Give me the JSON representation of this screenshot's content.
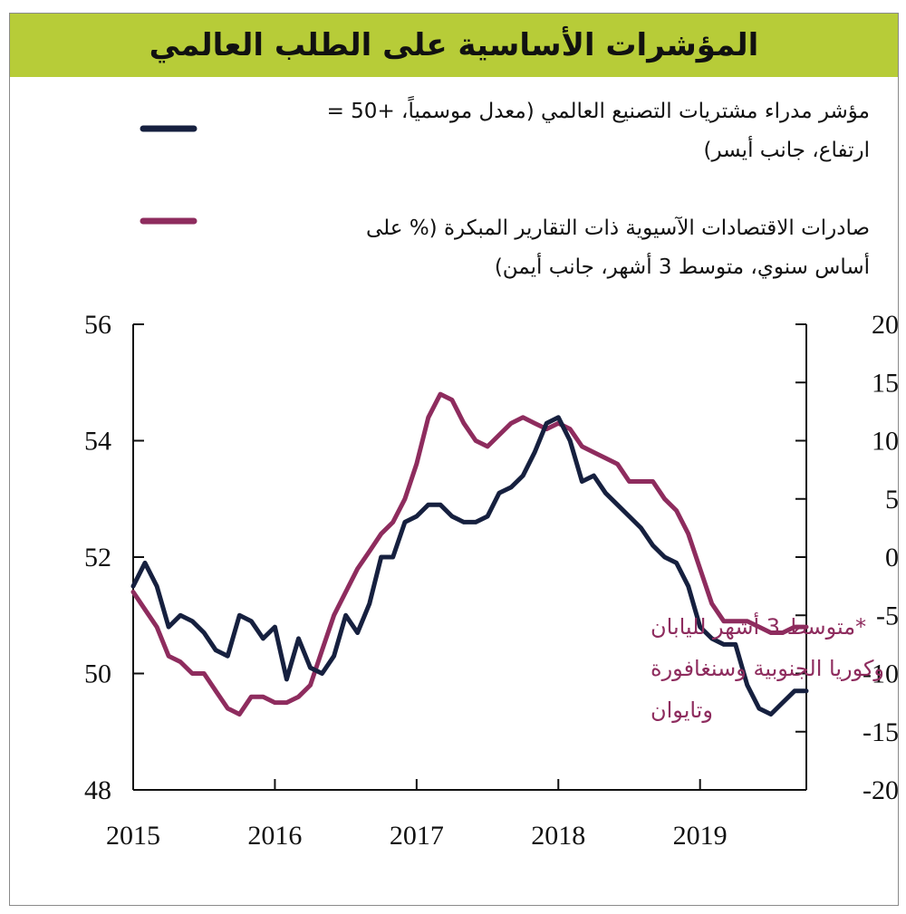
{
  "header": {
    "title": "المؤشرات الأساسية على الطلب العالمي"
  },
  "colors": {
    "pmi": "#16203f",
    "exports": "#8e2c5e",
    "title_bg": "#b7cc38"
  },
  "chart_data": {
    "type": "line",
    "title": "المؤشرات الأساسية على الطلب العالمي",
    "legend": [
      {
        "line1": "مؤشر مدراء مشتريات التصنيع العالمي (معدل موسمياً، +50 =",
        "line2": "ارتفاع، جانب أيسر)"
      },
      {
        "line1": "صادرات الاقتصادات الآسيوية ذات التقارير المبكرة (% على",
        "line2": "أساس سنوي، متوسط 3 أشهر، جانب أيمن)"
      }
    ],
    "annotation": [
      "*متوسط 3 أشهر لليابان",
      "وكوريا الجنوبية وسنغافورة",
      "وتايوان"
    ],
    "x_ticks": [
      "2015",
      "2016",
      "2017",
      "2018",
      "2019"
    ],
    "x_range": [
      2015,
      2019.75
    ],
    "y_left": {
      "range": [
        48,
        56
      ],
      "ticks": [
        "48",
        "50",
        "52",
        "54",
        "56"
      ]
    },
    "y_right": {
      "range": [
        -20,
        20
      ],
      "ticks": [
        "-20",
        "-15",
        "-10",
        "-5",
        "0",
        "5",
        "10",
        "15",
        "20"
      ]
    },
    "series": [
      {
        "name": "مؤشر مدراء مشتريات التصنيع العالمي",
        "axis": "left",
        "x": [
          2015.0,
          2015.083,
          2015.167,
          2015.25,
          2015.333,
          2015.417,
          2015.5,
          2015.583,
          2015.667,
          2015.75,
          2015.833,
          2015.917,
          2016.0,
          2016.083,
          2016.167,
          2016.25,
          2016.333,
          2016.417,
          2016.5,
          2016.583,
          2016.667,
          2016.75,
          2016.833,
          2016.917,
          2017.0,
          2017.083,
          2017.167,
          2017.25,
          2017.333,
          2017.417,
          2017.5,
          2017.583,
          2017.667,
          2017.75,
          2017.833,
          2017.917,
          2018.0,
          2018.083,
          2018.167,
          2018.25,
          2018.333,
          2018.417,
          2018.5,
          2018.583,
          2018.667,
          2018.75,
          2018.833,
          2018.917,
          2019.0,
          2019.083,
          2019.167,
          2019.25,
          2019.333,
          2019.417,
          2019.5,
          2019.583,
          2019.667,
          2019.75
        ],
        "values": [
          51.5,
          51.9,
          51.5,
          50.8,
          51.0,
          50.9,
          50.7,
          50.4,
          50.3,
          51.0,
          50.9,
          50.6,
          50.8,
          49.9,
          50.6,
          50.1,
          50.0,
          50.3,
          51.0,
          50.7,
          51.2,
          52.0,
          52.0,
          52.6,
          52.7,
          52.9,
          52.9,
          52.7,
          52.6,
          52.6,
          52.7,
          53.1,
          53.2,
          53.4,
          53.8,
          54.3,
          54.4,
          54.0,
          53.3,
          53.4,
          53.1,
          52.9,
          52.7,
          52.5,
          52.2,
          52.0,
          51.9,
          51.5,
          50.8,
          50.6,
          50.5,
          50.5,
          49.8,
          49.4,
          49.3,
          49.5,
          49.7,
          49.7
        ]
      },
      {
        "name": "صادرات الاقتصادات الآسيوية ذات التقارير المبكرة",
        "axis": "right",
        "x": [
          2015.0,
          2015.083,
          2015.167,
          2015.25,
          2015.333,
          2015.417,
          2015.5,
          2015.583,
          2015.667,
          2015.75,
          2015.833,
          2015.917,
          2016.0,
          2016.083,
          2016.167,
          2016.25,
          2016.333,
          2016.417,
          2016.5,
          2016.583,
          2016.667,
          2016.75,
          2016.833,
          2016.917,
          2017.0,
          2017.083,
          2017.167,
          2017.25,
          2017.333,
          2017.417,
          2017.5,
          2017.583,
          2017.667,
          2017.75,
          2017.833,
          2017.917,
          2018.0,
          2018.083,
          2018.167,
          2018.25,
          2018.333,
          2018.417,
          2018.5,
          2018.583,
          2018.667,
          2018.75,
          2018.833,
          2018.917,
          2019.0,
          2019.083,
          2019.167,
          2019.25,
          2019.333,
          2019.417,
          2019.5,
          2019.583,
          2019.667,
          2019.75
        ],
        "values": [
          -3.0,
          -4.5,
          -6.0,
          -8.5,
          -9.0,
          -10.0,
          -10.0,
          -11.5,
          -13.0,
          -13.5,
          -12.0,
          -12.0,
          -12.5,
          -12.5,
          -12.0,
          -11.0,
          -8.0,
          -5.0,
          -3.0,
          -1.0,
          0.5,
          2.0,
          3.0,
          5.0,
          8.0,
          12.0,
          14.0,
          13.5,
          11.5,
          10.0,
          9.5,
          10.5,
          11.5,
          12.0,
          11.5,
          11.0,
          11.5,
          11.0,
          9.5,
          9.0,
          8.5,
          8.0,
          6.5,
          6.5,
          6.5,
          5.0,
          4.0,
          2.0,
          -1.0,
          -4.0,
          -5.5,
          -5.5,
          -5.5,
          -6.0,
          -6.5,
          -6.5,
          -6.0,
          -6.0
        ]
      }
    ]
  }
}
